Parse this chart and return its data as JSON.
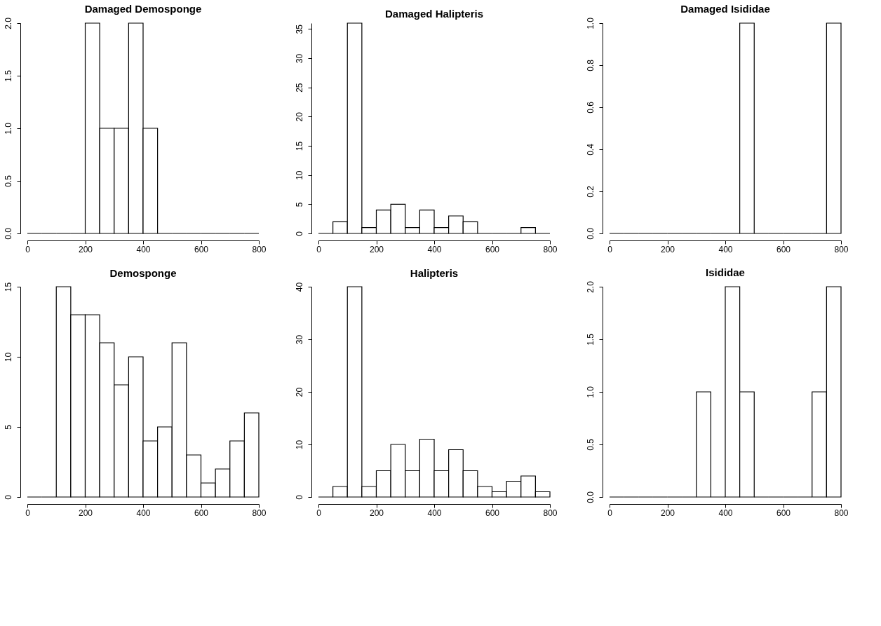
{
  "chart_data": [
    {
      "type": "histogram",
      "title": "Damaged Demosponge",
      "bins": [
        0,
        50,
        100,
        150,
        200,
        250,
        300,
        350,
        400,
        450,
        500,
        550,
        600,
        650,
        700,
        750,
        800
      ],
      "values": [
        0,
        0,
        0,
        0,
        2,
        1,
        1,
        2,
        1,
        0,
        0,
        0,
        0,
        0,
        0,
        0
      ],
      "xlim": [
        0,
        800
      ],
      "xticks": [
        0,
        200,
        400,
        600,
        800
      ],
      "ylim": [
        0,
        2
      ],
      "yticks": [
        {
          "value": 0,
          "label": "0.0"
        },
        0.5,
        {
          "value": 1,
          "label": "1.0"
        },
        1.5,
        {
          "value": 2,
          "label": "2.0"
        }
      ],
      "grid": false
    },
    {
      "type": "histogram",
      "title": "Damaged Halipteris",
      "bins": [
        0,
        50,
        100,
        150,
        200,
        250,
        300,
        350,
        400,
        450,
        500,
        550,
        600,
        650,
        700,
        750,
        800
      ],
      "values": [
        0,
        2,
        36,
        1,
        4,
        5,
        1,
        4,
        1,
        3,
        2,
        0,
        0,
        0,
        1,
        0
      ],
      "xlim": [
        0,
        800
      ],
      "xticks": [
        0,
        200,
        400,
        600,
        800
      ],
      "ylim": [
        0,
        36
      ],
      "yticks": [
        0,
        5,
        10,
        15,
        20,
        25,
        30,
        35
      ],
      "grid": false
    },
    {
      "type": "histogram",
      "title": "Damaged Isididae",
      "bins": [
        0,
        50,
        100,
        150,
        200,
        250,
        300,
        350,
        400,
        450,
        500,
        550,
        600,
        650,
        700,
        750,
        800
      ],
      "values": [
        0,
        0,
        0,
        0,
        0,
        0,
        0,
        0,
        0,
        1,
        0,
        0,
        0,
        0,
        0,
        1
      ],
      "xlim": [
        0,
        800
      ],
      "xticks": [
        0,
        200,
        400,
        600,
        800
      ],
      "ylim": [
        0,
        1
      ],
      "yticks": [
        {
          "value": 0,
          "label": "0.0"
        },
        0.2,
        0.4,
        0.6,
        0.8,
        {
          "value": 1,
          "label": "1.0"
        }
      ],
      "grid": false
    },
    {
      "type": "histogram",
      "title": "Demosponge",
      "bins": [
        0,
        50,
        100,
        150,
        200,
        250,
        300,
        350,
        400,
        450,
        500,
        550,
        600,
        650,
        700,
        750,
        800
      ],
      "values": [
        0,
        0,
        15,
        13,
        13,
        11,
        8,
        10,
        4,
        5,
        11,
        3,
        1,
        2,
        4,
        6
      ],
      "xlim": [
        0,
        800
      ],
      "xticks": [
        0,
        200,
        400,
        600,
        800
      ],
      "ylim": [
        0,
        15
      ],
      "yticks": [
        0,
        5,
        10,
        15
      ],
      "grid": false
    },
    {
      "type": "histogram",
      "title": "Halipteris",
      "bins": [
        0,
        50,
        100,
        150,
        200,
        250,
        300,
        350,
        400,
        450,
        500,
        550,
        600,
        650,
        700,
        750,
        800
      ],
      "values": [
        0,
        2,
        40,
        2,
        5,
        10,
        5,
        11,
        5,
        9,
        5,
        2,
        1,
        3,
        4,
        1
      ],
      "xlim": [
        0,
        800
      ],
      "xticks": [
        0,
        200,
        400,
        600,
        800
      ],
      "ylim": [
        0,
        40
      ],
      "yticks": [
        0,
        10,
        20,
        30,
        40
      ],
      "grid": false
    },
    {
      "type": "histogram",
      "title": "Isididae",
      "bins": [
        0,
        50,
        100,
        150,
        200,
        250,
        300,
        350,
        400,
        450,
        500,
        550,
        600,
        650,
        700,
        750,
        800
      ],
      "values": [
        0,
        0,
        0,
        0,
        0,
        0,
        1,
        0,
        2,
        1,
        0,
        0,
        0,
        0,
        1,
        2
      ],
      "xlim": [
        0,
        800
      ],
      "xticks": [
        0,
        200,
        400,
        600,
        800
      ],
      "ylim": [
        0,
        2
      ],
      "yticks": [
        {
          "value": 0,
          "label": "0.0"
        },
        0.5,
        {
          "value": 1,
          "label": "1.0"
        },
        1.5,
        {
          "value": 2,
          "label": "2.0"
        }
      ],
      "grid": false
    }
  ]
}
